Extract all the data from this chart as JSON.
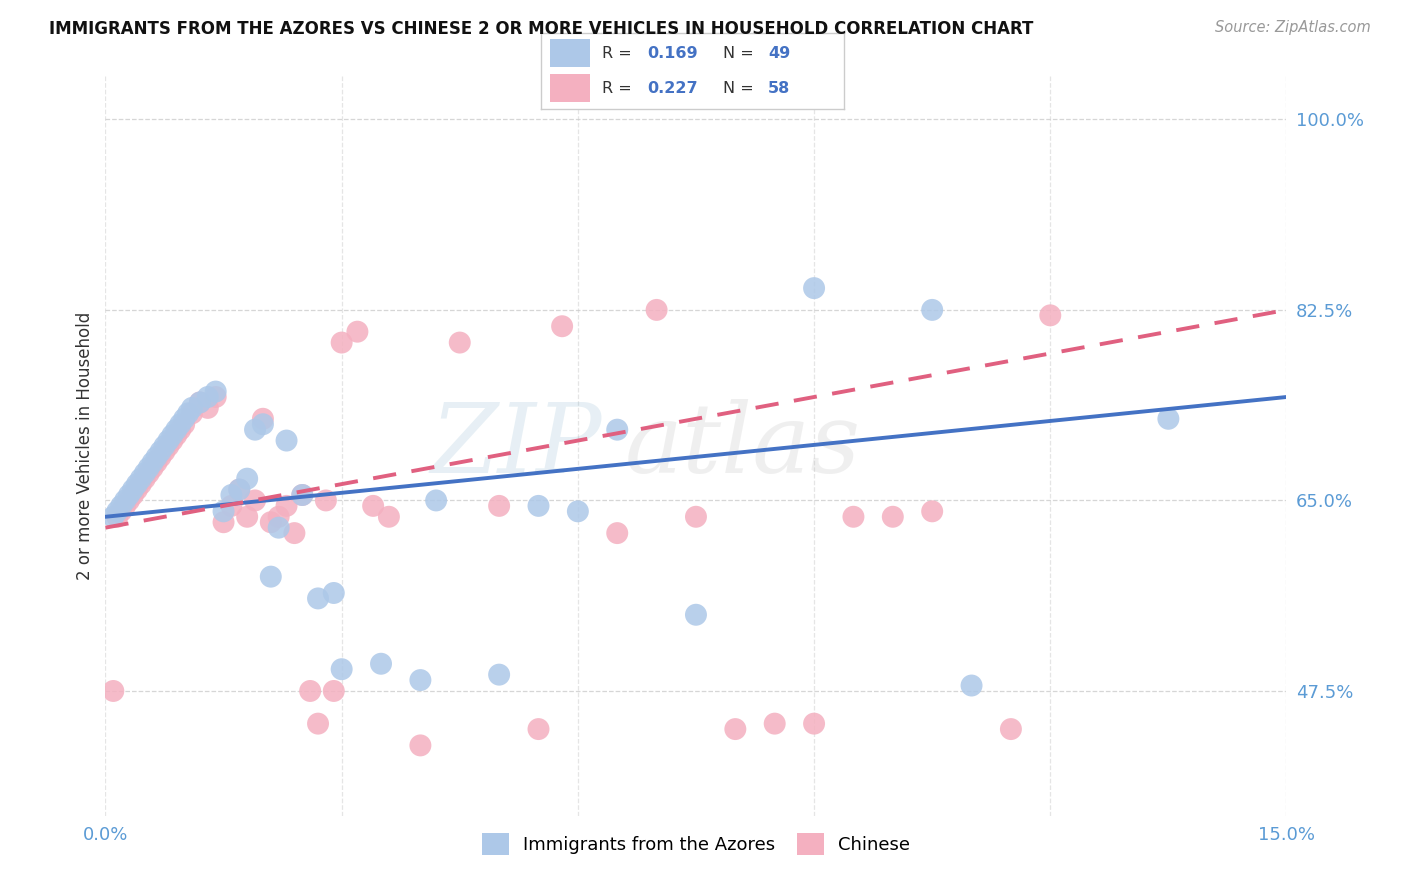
{
  "title": "IMMIGRANTS FROM THE AZORES VS CHINESE 2 OR MORE VEHICLES IN HOUSEHOLD CORRELATION CHART",
  "source": "Source: ZipAtlas.com",
  "ylabel": "2 or more Vehicles in Household",
  "x_min": 0.0,
  "x_max": 15.0,
  "y_min": 36.0,
  "y_max": 104.0,
  "x_ticks": [
    0.0,
    3.0,
    6.0,
    9.0,
    12.0,
    15.0
  ],
  "x_tick_labels": [
    "0.0%",
    "",
    "",
    "",
    "",
    "15.0%"
  ],
  "y_ticks": [
    47.5,
    65.0,
    82.5,
    100.0
  ],
  "y_tick_labels": [
    "47.5%",
    "65.0%",
    "82.5%",
    "100.0%"
  ],
  "azores_r": "0.169",
  "azores_n": "49",
  "chinese_r": "0.227",
  "chinese_n": "58",
  "azores_scatter_color": "#adc8e8",
  "chinese_scatter_color": "#f4b0c0",
  "azores_line_color": "#4472c4",
  "chinese_line_color": "#e06080",
  "grid_color": "#cccccc",
  "title_color": "#111111",
  "source_color": "#999999",
  "tick_color": "#5b9bd5",
  "azores_x": [
    0.1,
    0.15,
    0.2,
    0.25,
    0.3,
    0.35,
    0.4,
    0.45,
    0.5,
    0.55,
    0.6,
    0.65,
    0.7,
    0.75,
    0.8,
    0.85,
    0.9,
    0.95,
    1.0,
    1.05,
    1.1,
    1.2,
    1.3,
    1.4,
    1.5,
    1.6,
    1.7,
    1.8,
    1.9,
    2.0,
    2.1,
    2.2,
    2.3,
    2.5,
    2.7,
    2.9,
    3.0,
    3.5,
    4.0,
    4.2,
    5.0,
    5.5,
    6.0,
    6.5,
    7.5,
    9.0,
    10.5,
    11.0,
    13.5
  ],
  "azores_y": [
    63.5,
    64.0,
    64.5,
    65.0,
    65.5,
    66.0,
    66.5,
    67.0,
    67.5,
    68.0,
    68.5,
    69.0,
    69.5,
    70.0,
    70.5,
    71.0,
    71.5,
    72.0,
    72.5,
    73.0,
    73.5,
    74.0,
    74.5,
    75.0,
    64.0,
    65.5,
    66.0,
    67.0,
    71.5,
    72.0,
    58.0,
    62.5,
    70.5,
    65.5,
    56.0,
    56.5,
    49.5,
    50.0,
    48.5,
    65.0,
    49.0,
    64.5,
    64.0,
    71.5,
    54.5,
    84.5,
    82.5,
    48.0,
    72.5
  ],
  "chinese_x": [
    0.1,
    0.15,
    0.2,
    0.25,
    0.3,
    0.35,
    0.4,
    0.45,
    0.5,
    0.55,
    0.6,
    0.65,
    0.7,
    0.75,
    0.8,
    0.85,
    0.9,
    0.95,
    1.0,
    1.1,
    1.2,
    1.3,
    1.4,
    1.5,
    1.6,
    1.7,
    1.8,
    1.9,
    2.0,
    2.1,
    2.2,
    2.3,
    2.4,
    2.5,
    2.6,
    2.7,
    2.8,
    2.9,
    3.0,
    3.2,
    3.4,
    3.6,
    4.0,
    4.5,
    5.0,
    5.5,
    5.8,
    6.5,
    7.0,
    7.5,
    8.0,
    8.5,
    9.0,
    9.5,
    10.0,
    10.5,
    11.5,
    12.0
  ],
  "chinese_y": [
    47.5,
    63.5,
    64.0,
    64.5,
    65.0,
    65.5,
    66.0,
    66.5,
    67.0,
    67.5,
    68.0,
    68.5,
    69.0,
    69.5,
    70.0,
    70.5,
    71.0,
    71.5,
    72.0,
    73.0,
    74.0,
    73.5,
    74.5,
    63.0,
    64.5,
    66.0,
    63.5,
    65.0,
    72.5,
    63.0,
    63.5,
    64.5,
    62.0,
    65.5,
    47.5,
    44.5,
    65.0,
    47.5,
    79.5,
    80.5,
    64.5,
    63.5,
    42.5,
    79.5,
    64.5,
    44.0,
    81.0,
    62.0,
    82.5,
    63.5,
    44.0,
    44.5,
    44.5,
    63.5,
    63.5,
    64.0,
    44.0,
    82.0
  ],
  "azores_line_x0": 0.0,
  "azores_line_y0": 63.5,
  "azores_line_x1": 15.0,
  "azores_line_y1": 74.5,
  "chinese_line_x0": 0.0,
  "chinese_line_y0": 62.5,
  "chinese_line_x1": 15.0,
  "chinese_line_y1": 82.5
}
